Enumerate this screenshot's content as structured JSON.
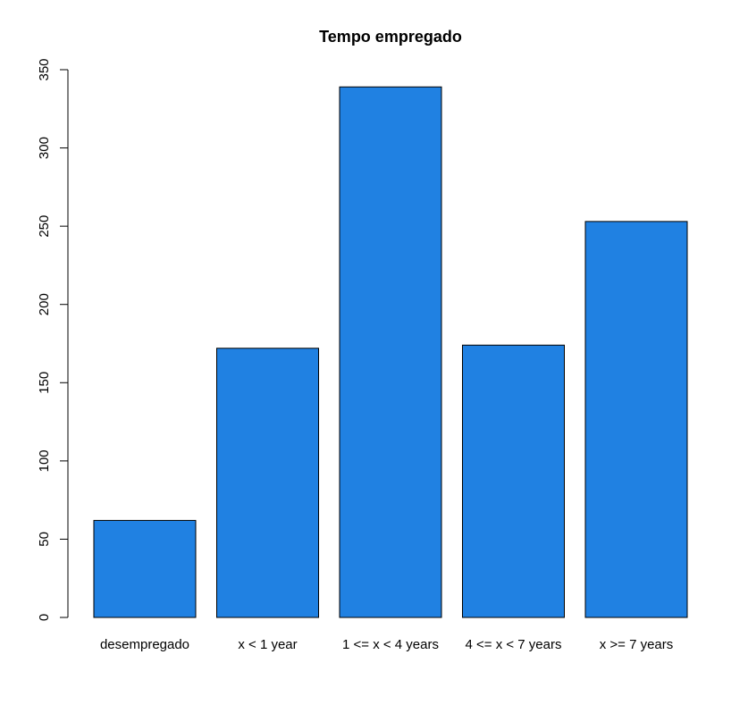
{
  "chart_data": {
    "type": "bar",
    "title": "Tempo empregado",
    "xlabel": "",
    "ylabel": "",
    "categories": [
      "desempregado",
      "x < 1 year",
      "1 <= x < 4 years",
      "4 <= x < 7 years",
      "x >= 7 years"
    ],
    "values": [
      62,
      172,
      339,
      174,
      253
    ],
    "ylim": [
      0,
      350
    ],
    "yticks": [
      "0",
      "50",
      "100",
      "150",
      "200",
      "250",
      "300",
      "350"
    ],
    "grid": false,
    "bar_color": "#2081e2"
  }
}
